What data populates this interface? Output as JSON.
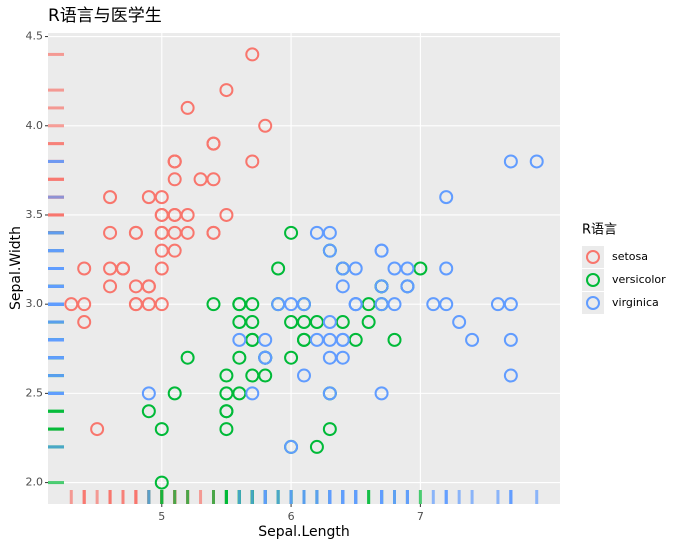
{
  "chart_data": {
    "type": "scatter",
    "title": "R语言与医学生",
    "x_label": "Sepal.Length",
    "y_label": "Sepal.Width",
    "legend_title": "R语言",
    "legend": "right",
    "grid": true,
    "rug": true,
    "xlim": [
      4.12,
      8.08
    ],
    "ylim": [
      1.88,
      4.52
    ],
    "xticks": [
      5,
      6,
      7
    ],
    "yticks": [
      {
        "value": 2,
        "label": "2.0"
      },
      2.5,
      {
        "value": 3,
        "label": "3.0"
      },
      3.5,
      {
        "value": 4,
        "label": "4.0"
      },
      4.5
    ],
    "series": [
      {
        "name": "setosa",
        "color": "#F8766D",
        "x": [
          5.1,
          4.9,
          4.7,
          4.6,
          5.0,
          5.4,
          4.6,
          5.0,
          4.4,
          4.9,
          5.4,
          4.8,
          4.8,
          4.3,
          5.8,
          5.7,
          5.4,
          5.1,
          5.7,
          5.1,
          5.4,
          5.1,
          4.6,
          5.1,
          4.8,
          5.0,
          5.0,
          5.2,
          5.2,
          4.7,
          4.8,
          5.4,
          5.2,
          5.5,
          4.9,
          5.0,
          5.5,
          4.9,
          4.4,
          5.1,
          5.0,
          4.5,
          4.4,
          5.0,
          5.1,
          4.8,
          5.1,
          4.6,
          5.3,
          5.0
        ],
        "values": [
          3.5,
          3.0,
          3.2,
          3.1,
          3.6,
          3.9,
          3.4,
          3.4,
          2.9,
          3.1,
          3.7,
          3.4,
          3.0,
          3.0,
          4.0,
          4.4,
          3.9,
          3.5,
          3.8,
          3.8,
          3.4,
          3.7,
          3.6,
          3.3,
          3.4,
          3.0,
          3.4,
          3.5,
          3.4,
          3.2,
          3.1,
          3.4,
          4.1,
          4.2,
          3.1,
          3.2,
          3.5,
          3.6,
          3.0,
          3.4,
          3.5,
          2.3,
          3.2,
          3.5,
          3.8,
          3.0,
          3.8,
          3.2,
          3.7,
          3.3
        ]
      },
      {
        "name": "versicolor",
        "color": "#00BA38",
        "x": [
          7.0,
          6.4,
          6.9,
          5.5,
          6.5,
          5.7,
          6.3,
          4.9,
          6.6,
          5.2,
          5.0,
          5.9,
          6.0,
          6.1,
          5.6,
          6.7,
          5.6,
          5.8,
          6.2,
          5.6,
          5.9,
          6.1,
          6.3,
          6.1,
          6.4,
          6.6,
          6.8,
          6.7,
          6.0,
          5.7,
          5.5,
          5.5,
          5.8,
          6.0,
          5.4,
          6.0,
          6.7,
          6.3,
          5.6,
          5.5,
          5.5,
          6.1,
          5.8,
          5.0,
          5.6,
          5.7,
          5.7,
          6.2,
          5.1,
          5.7
        ],
        "values": [
          3.2,
          3.2,
          3.1,
          2.3,
          2.8,
          2.8,
          3.3,
          2.4,
          2.9,
          2.7,
          2.0,
          3.0,
          2.2,
          2.9,
          2.9,
          3.1,
          3.0,
          2.7,
          2.2,
          2.5,
          3.2,
          2.8,
          2.5,
          2.8,
          2.9,
          3.0,
          2.8,
          3.0,
          2.9,
          2.6,
          2.4,
          2.4,
          2.7,
          2.7,
          3.0,
          3.4,
          3.1,
          2.3,
          3.0,
          2.5,
          2.6,
          3.0,
          2.6,
          2.3,
          2.7,
          3.0,
          2.9,
          2.9,
          2.5,
          2.8
        ]
      },
      {
        "name": "virginica",
        "color": "#619CFF",
        "x": [
          6.3,
          5.8,
          7.1,
          6.3,
          6.5,
          7.6,
          4.9,
          7.3,
          6.7,
          7.2,
          6.5,
          6.4,
          6.8,
          5.7,
          5.8,
          6.4,
          6.5,
          7.7,
          7.7,
          6.0,
          6.9,
          5.6,
          7.7,
          6.3,
          6.7,
          7.2,
          6.2,
          6.1,
          6.4,
          7.2,
          7.4,
          7.9,
          6.4,
          6.3,
          6.1,
          7.7,
          6.3,
          6.4,
          6.0,
          6.9,
          6.7,
          6.9,
          5.8,
          6.8,
          6.7,
          6.7,
          6.3,
          6.5,
          6.2,
          5.9
        ],
        "values": [
          3.3,
          2.7,
          3.0,
          2.9,
          3.0,
          3.0,
          2.5,
          2.9,
          2.5,
          3.6,
          3.2,
          2.7,
          3.0,
          2.5,
          2.8,
          3.2,
          3.0,
          3.8,
          2.6,
          2.2,
          3.2,
          2.8,
          2.8,
          2.7,
          3.3,
          3.2,
          2.8,
          3.0,
          2.8,
          3.0,
          2.8,
          3.8,
          2.8,
          2.8,
          2.6,
          3.0,
          3.4,
          3.1,
          3.0,
          3.1,
          3.1,
          3.1,
          2.7,
          3.2,
          3.3,
          3.0,
          2.5,
          3.0,
          3.4,
          3.0
        ]
      }
    ]
  }
}
